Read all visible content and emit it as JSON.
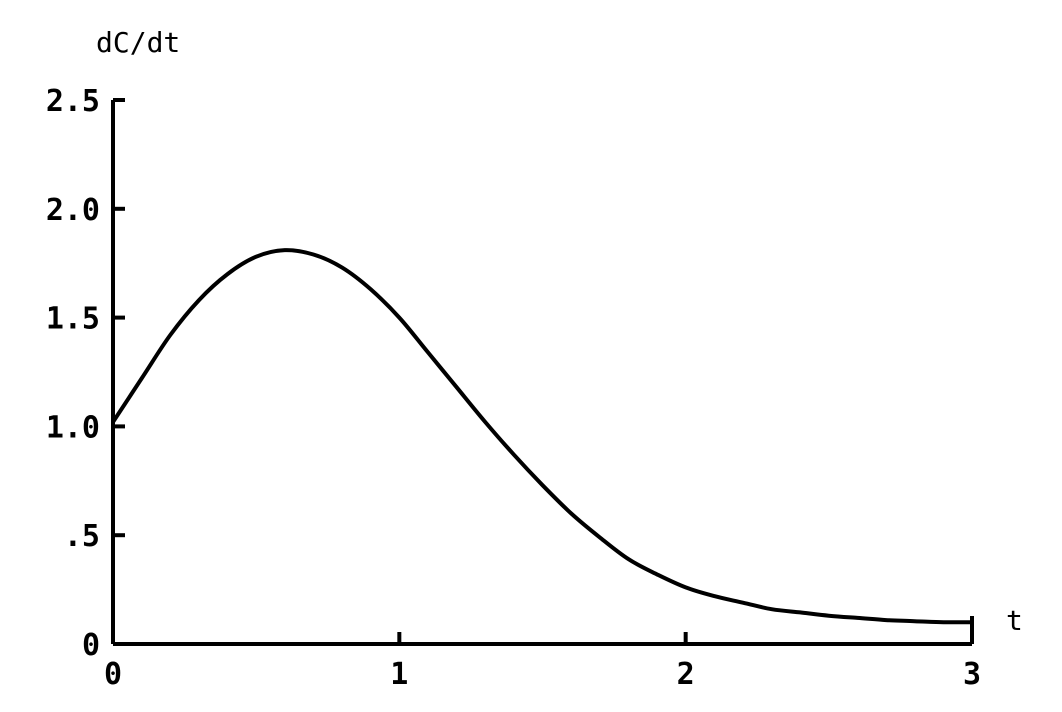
{
  "chart_data": {
    "type": "line",
    "title": "",
    "xlabel": "t",
    "ylabel": "dC/dt",
    "xlim": [
      0,
      3
    ],
    "ylim": [
      0,
      2.5
    ],
    "grid": false,
    "x_ticks": [
      {
        "value": 0,
        "label": "0"
      },
      {
        "value": 1,
        "label": "1"
      },
      {
        "value": 2,
        "label": "2"
      },
      {
        "value": 3,
        "label": "3"
      }
    ],
    "y_ticks": [
      {
        "value": 0,
        "label": "0"
      },
      {
        "value": 0.5,
        "label": ".5"
      },
      {
        "value": 1.0,
        "label": "1.0"
      },
      {
        "value": 1.5,
        "label": "1.5"
      },
      {
        "value": 2.0,
        "label": "2.0"
      },
      {
        "value": 2.5,
        "label": "2.5"
      }
    ],
    "series": [
      {
        "x": [
          0,
          0.1,
          0.2,
          0.3,
          0.4,
          0.5,
          0.6,
          0.7,
          0.8,
          0.9,
          1.0,
          1.1,
          1.2,
          1.3,
          1.4,
          1.5,
          1.6,
          1.7,
          1.8,
          1.9,
          2.0,
          2.1,
          2.2,
          2.3,
          2.4,
          2.5,
          2.6,
          2.7,
          2.8,
          2.9,
          3.0
        ],
        "y": [
          1.02,
          1.22,
          1.42,
          1.58,
          1.7,
          1.78,
          1.81,
          1.79,
          1.73,
          1.63,
          1.5,
          1.34,
          1.18,
          1.02,
          0.87,
          0.73,
          0.6,
          0.49,
          0.39,
          0.32,
          0.26,
          0.22,
          0.19,
          0.16,
          0.145,
          0.13,
          0.12,
          0.11,
          0.105,
          0.1,
          0.1
        ]
      }
    ]
  }
}
